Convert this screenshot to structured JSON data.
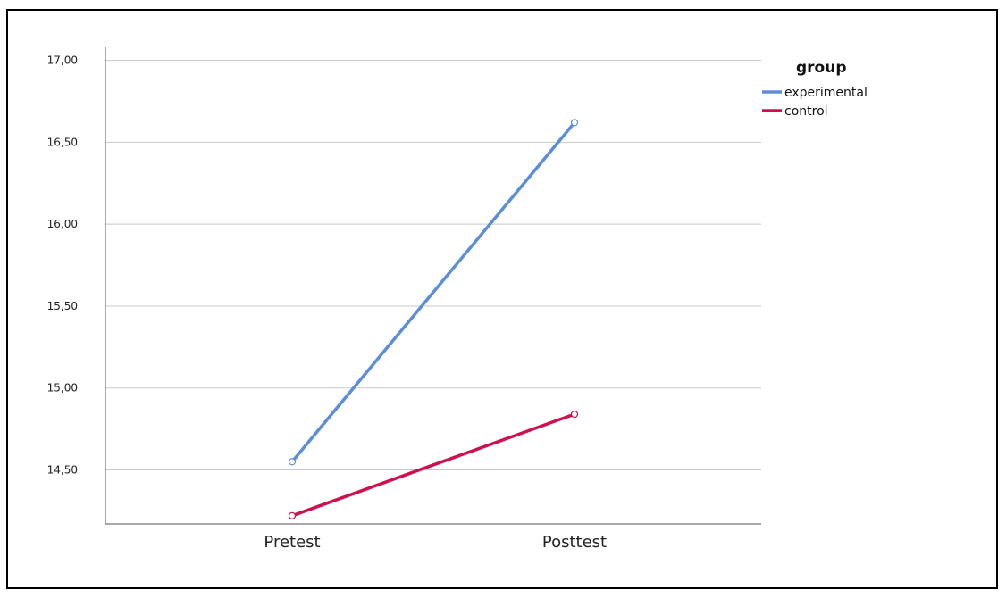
{
  "chart_data": {
    "type": "line",
    "categories": [
      "Pretest",
      "Posttest"
    ],
    "ylim": [
      14.17,
      17.08
    ],
    "yticks": [
      "14,50",
      "15,00",
      "15,50",
      "16,00",
      "16,50",
      "17,00"
    ],
    "ytick_values": [
      14.5,
      15.0,
      15.5,
      16.0,
      16.5,
      17.0
    ],
    "grid": true,
    "legend": {
      "title": "group",
      "position": "top-right"
    },
    "series": [
      {
        "name": "experimental",
        "values": [
          14.55,
          16.62
        ],
        "color": "#5b8ed6"
      },
      {
        "name": "control",
        "values": [
          14.22,
          14.84
        ],
        "color": "#d0104c"
      }
    ]
  }
}
